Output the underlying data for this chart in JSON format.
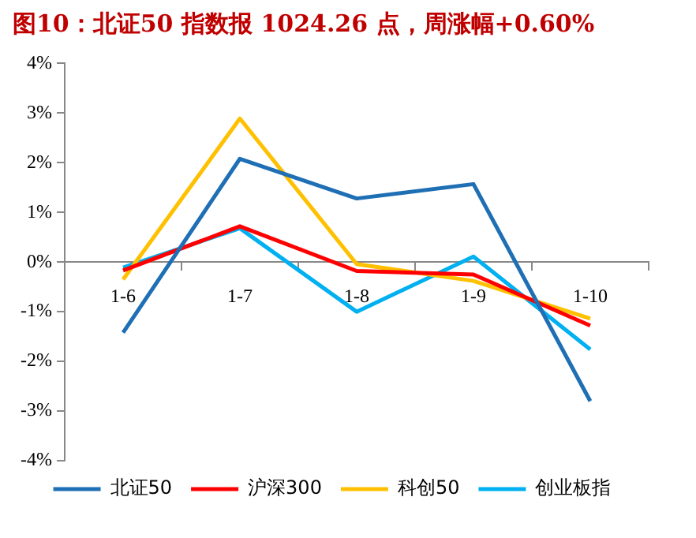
{
  "chart_data": {
    "type": "line",
    "title": "图10：北证50 指数报 1024.26 点，周涨幅+0.60%",
    "categories": [
      "1-6",
      "1-7",
      "1-8",
      "1-9",
      "1-10"
    ],
    "series": [
      {
        "name": "北证50",
        "color": "#1f6fb5",
        "values": [
          -1.42,
          2.08,
          1.28,
          1.57,
          -2.8
        ]
      },
      {
        "name": "沪深300",
        "color": "#ff0000",
        "values": [
          -0.17,
          0.72,
          -0.18,
          -0.25,
          -1.28
        ]
      },
      {
        "name": "科创50",
        "color": "#ffc000",
        "values": [
          -0.35,
          2.89,
          -0.04,
          -0.38,
          -1.14
        ]
      },
      {
        "name": "创业板指",
        "color": "#00b0f0",
        "values": [
          -0.11,
          0.68,
          -1.0,
          0.11,
          -1.76
        ]
      }
    ],
    "ylim": [
      -4,
      4
    ],
    "yticks": [
      {
        "value": -4,
        "label": "-4%"
      },
      {
        "value": -3,
        "label": "-3%"
      },
      {
        "value": -2,
        "label": "-2%"
      },
      {
        "value": -1,
        "label": "-1%"
      },
      {
        "value": 0,
        "label": "0%"
      },
      {
        "value": 1,
        "label": "1%"
      },
      {
        "value": 2,
        "label": "2%"
      },
      {
        "value": 3,
        "label": "3%"
      },
      {
        "value": 4,
        "label": "4%"
      }
    ],
    "grid": false,
    "legend": "bottom",
    "marker": "none",
    "line_style": "solid"
  }
}
